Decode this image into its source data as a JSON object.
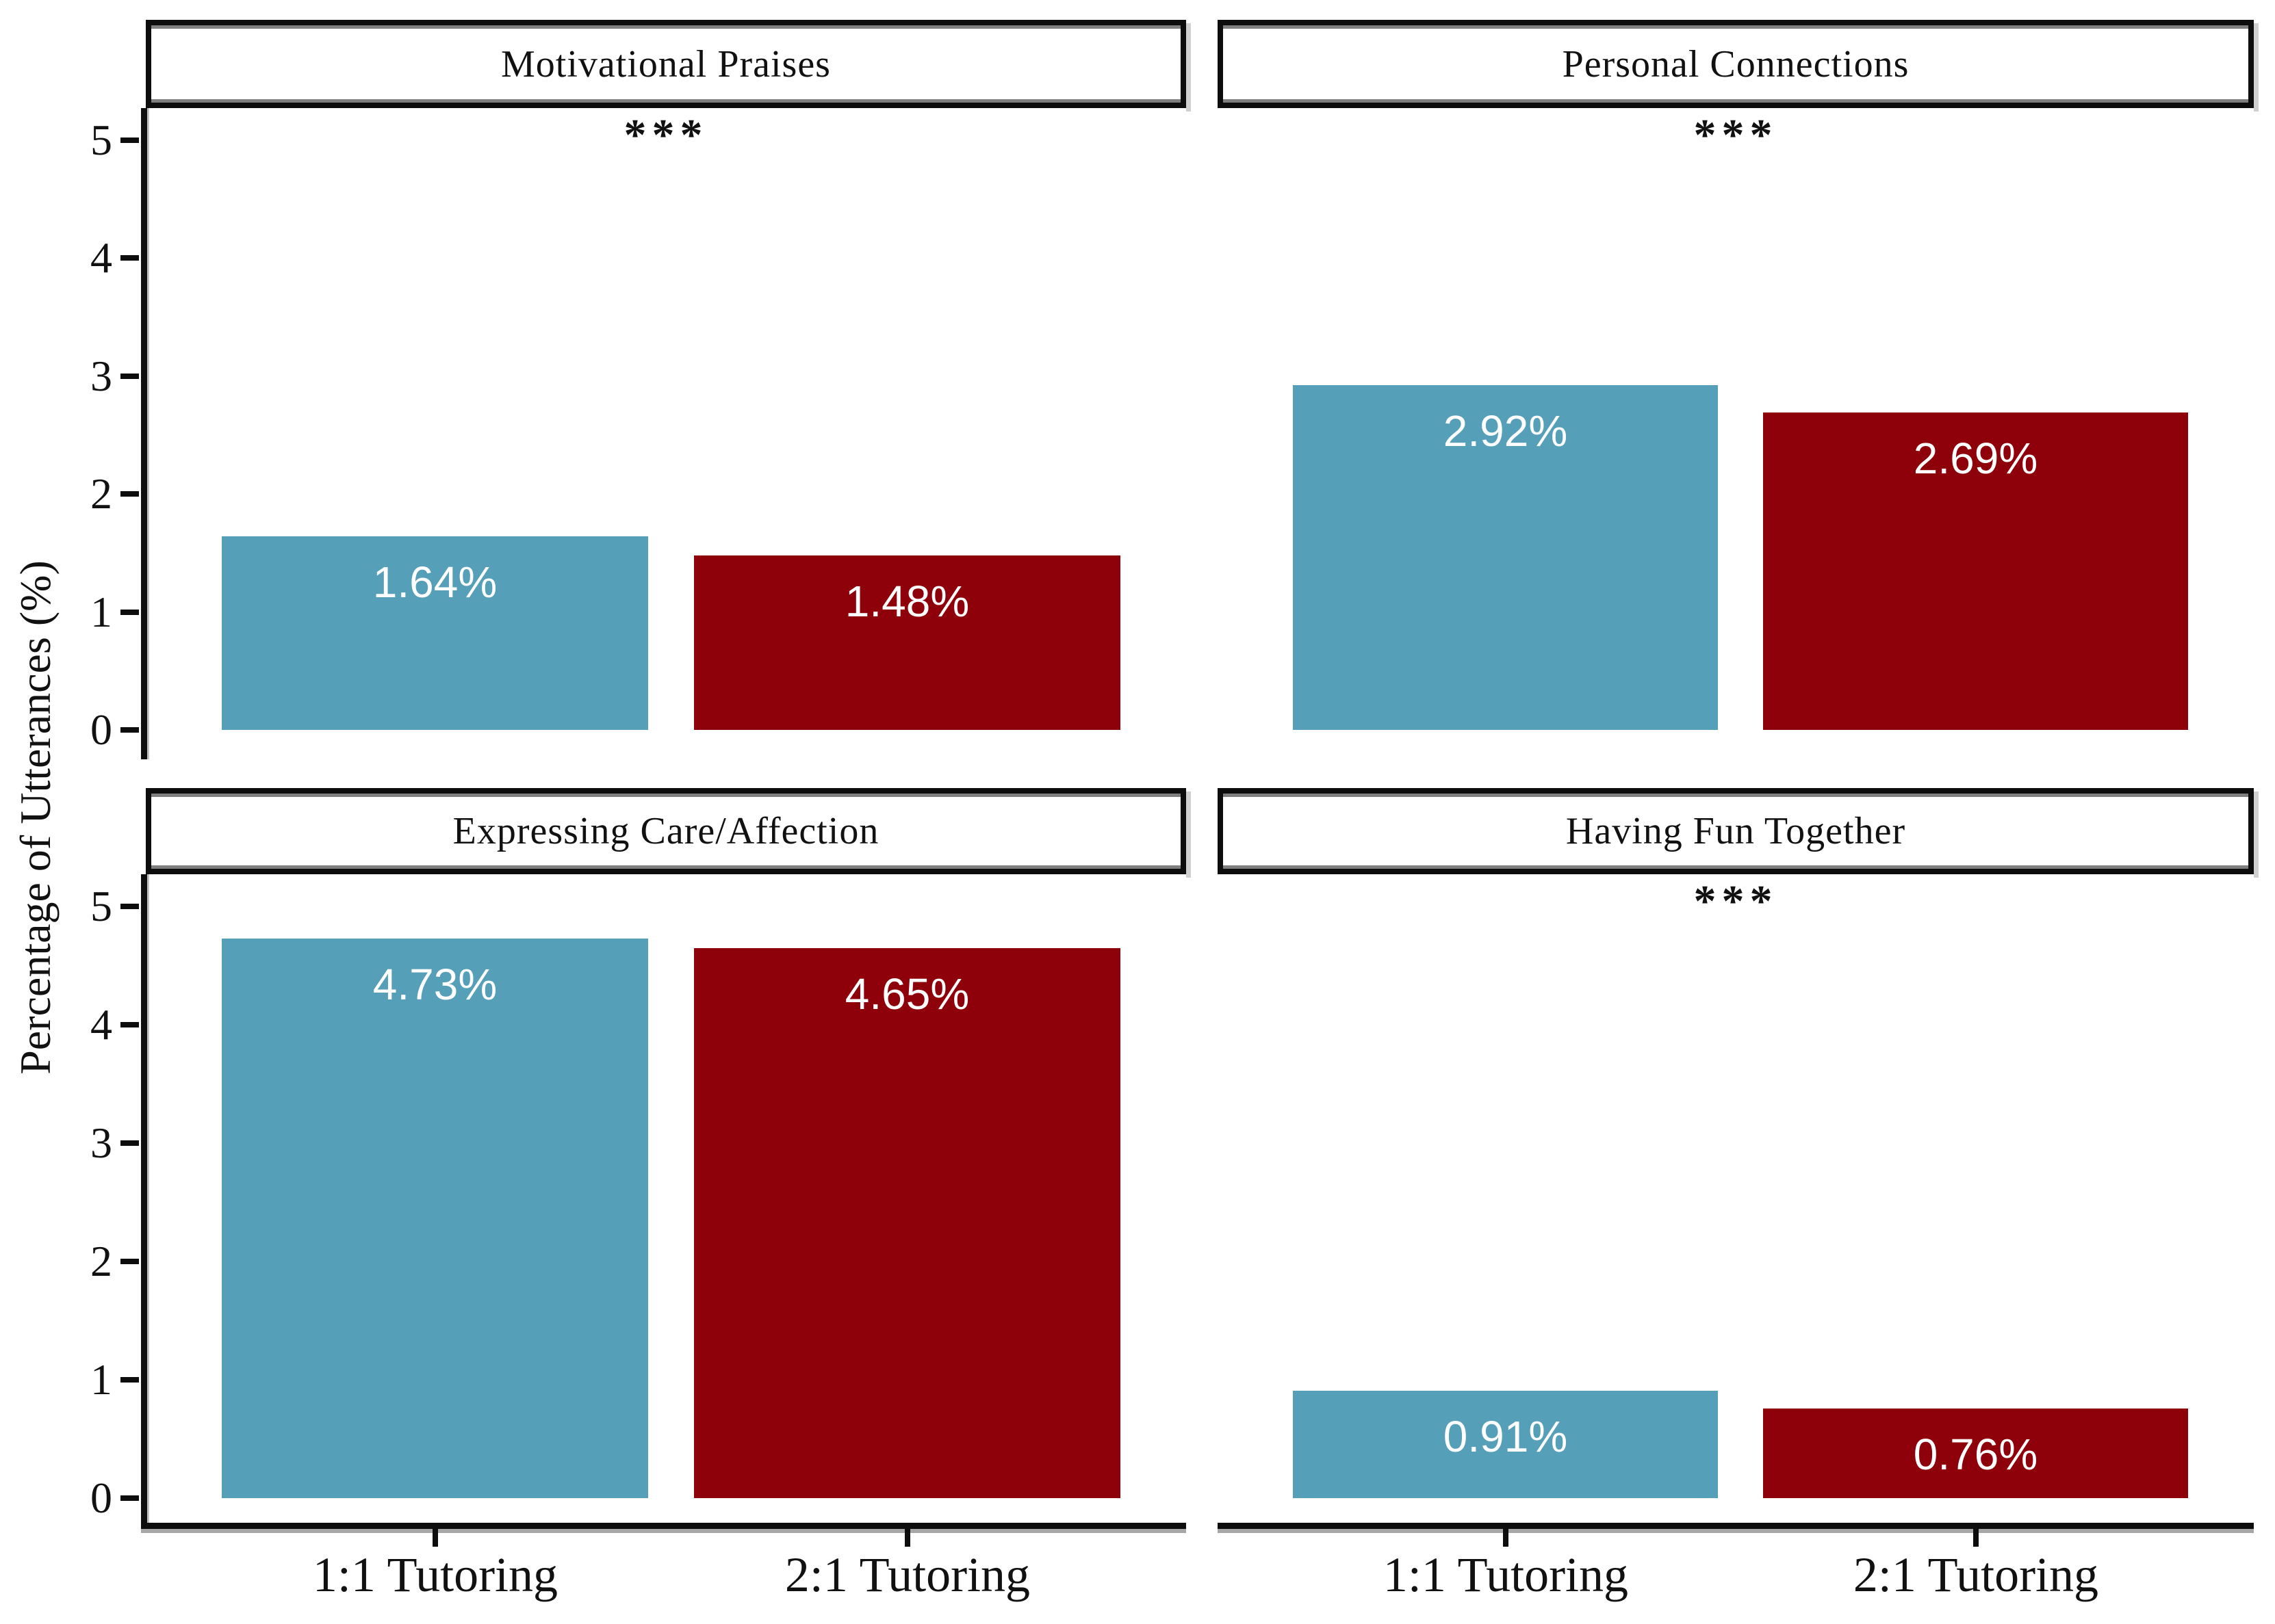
{
  "figure": {
    "ylabel": "Percentage of Utterances (%)",
    "x_categories": [
      "1:1 Tutoring",
      "2:1 Tutoring"
    ],
    "y_ticks": [
      0,
      1,
      2,
      3,
      4,
      5
    ],
    "colors": {
      "bar_1_1_tutoring": "#569fb9",
      "bar_2_1_tutoring": "#8e000a",
      "axis": "#0d0d0d",
      "bar_label_text": "#ffffff",
      "background": "#ffffff"
    }
  },
  "chart_data": {
    "type": "bar",
    "title": "",
    "xlabel": "",
    "ylabel": "Percentage of Utterances (%)",
    "categories": [
      "1:1 Tutoring",
      "2:1 Tutoring"
    ],
    "ylim": [
      0,
      5
    ],
    "grid": "off",
    "legend": "none",
    "series_colors": [
      "#569fb9",
      "#8e000a"
    ],
    "panels": [
      {
        "title": "Motivational Praises",
        "values": [
          1.64,
          1.48
        ],
        "labels": [
          "1.64%",
          "1.48%"
        ],
        "significance": "***"
      },
      {
        "title": "Personal Connections",
        "values": [
          2.92,
          2.69
        ],
        "labels": [
          "2.92%",
          "2.69%"
        ],
        "significance": "***"
      },
      {
        "title": "Expressing Care/Affection",
        "values": [
          4.73,
          4.65
        ],
        "labels": [
          "4.73%",
          "4.65%"
        ],
        "significance": ""
      },
      {
        "title": "Having Fun Together",
        "values": [
          0.91,
          0.76
        ],
        "labels": [
          "0.91%",
          "0.76%"
        ],
        "significance": "***"
      }
    ]
  }
}
